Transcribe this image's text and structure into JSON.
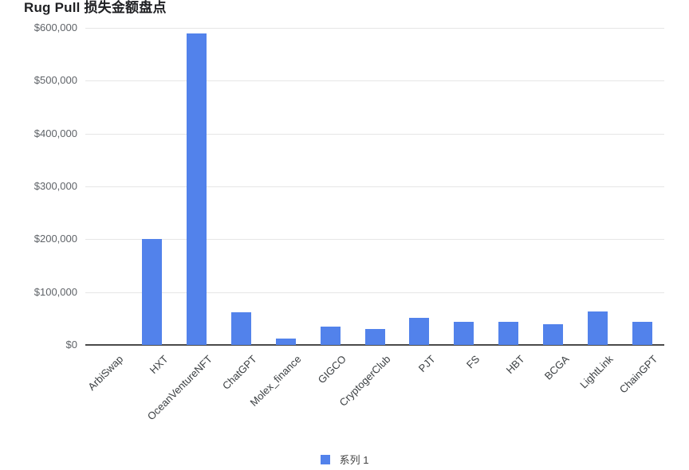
{
  "chart_data": {
    "type": "bar",
    "title": "Rug Pull 损失金额盘点",
    "categories": [
      "ArbiSwap",
      "HXT",
      "OceanVentureNFT",
      "ChatGPT",
      "Molex_finance",
      "GIGCO",
      "CryptogerClub",
      "PJT",
      "FS",
      "HBT",
      "BCGA",
      "LightLink",
      "ChainGPT"
    ],
    "series": [
      {
        "name": "系列 1",
        "values": [
          0,
          200000,
          590000,
          62000,
          12000,
          35000,
          30000,
          52000,
          43000,
          44000,
          39000,
          64000,
          43000
        ]
      }
    ],
    "xlabel": "",
    "ylabel": "",
    "ylim": [
      0,
      600000
    ],
    "ytick_labels": [
      "$600,000",
      "$500,000",
      "$400,000",
      "$300,000",
      "$200,000",
      "$100,000",
      "$0"
    ],
    "grid": "horizontal",
    "legend_position": "bottom",
    "bar_color": "#5282EB",
    "gridline_color": "#e6e6e6",
    "axis_line_color": "#4a4a4a"
  },
  "legend": {
    "label": "系列 1"
  }
}
